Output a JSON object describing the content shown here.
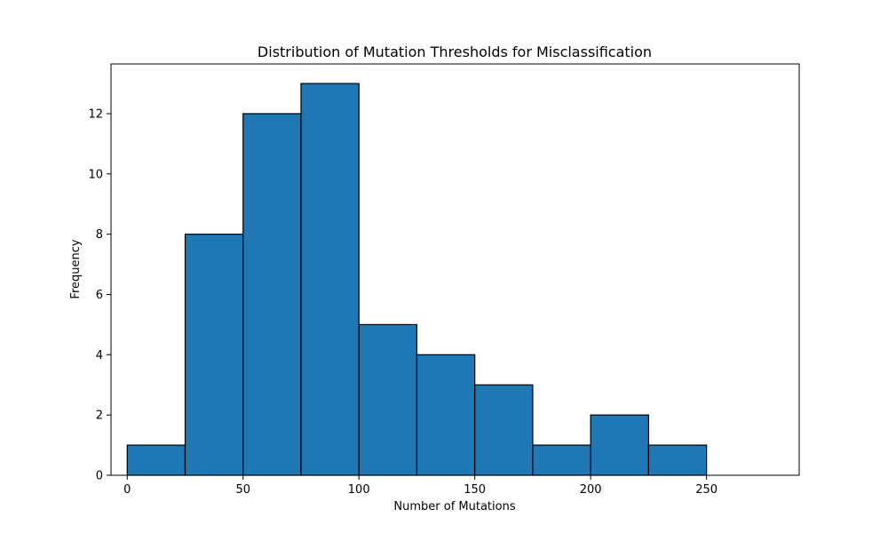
{
  "chart_data": {
    "type": "bar",
    "title": "Distribution of Mutation Thresholds for Misclassification",
    "xlabel": "Number of Mutations",
    "ylabel": "Frequency",
    "bin_edges": [
      0,
      25,
      50,
      75,
      100,
      125,
      150,
      175,
      200,
      225,
      250,
      275
    ],
    "values": [
      1,
      8,
      12,
      13,
      5,
      4,
      3,
      1,
      2,
      1,
      0
    ],
    "xlim": [
      -7,
      290
    ],
    "ylim": [
      0,
      13.65
    ],
    "xticks": [
      0,
      50,
      100,
      150,
      200,
      250
    ],
    "yticks": [
      0,
      2,
      4,
      6,
      8,
      10,
      12
    ],
    "grid": false,
    "bar_color": "#1f77b4",
    "edge_color": "#000000"
  }
}
